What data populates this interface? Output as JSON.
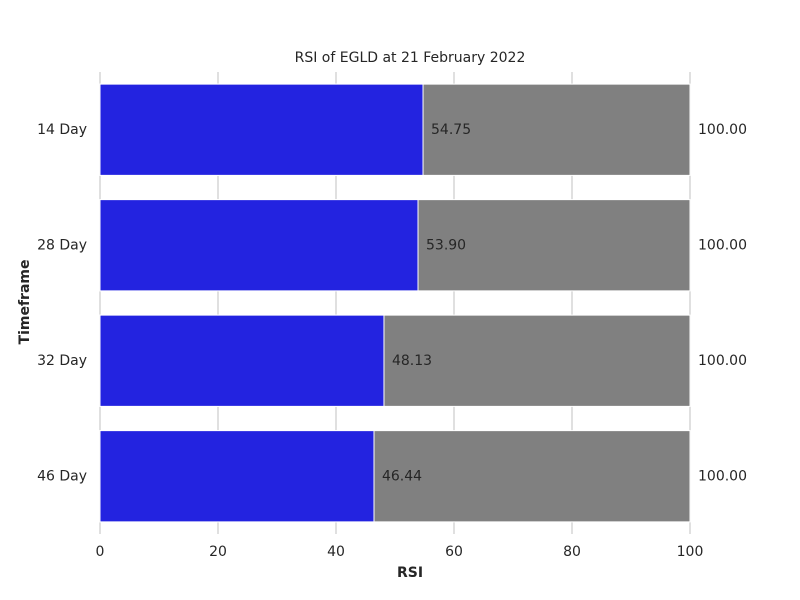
{
  "chart_data": {
    "type": "bar",
    "orientation": "horizontal",
    "title": "RSI of EGLD at 21 February 2022",
    "xlabel": "RSI",
    "ylabel": "Timeframe",
    "categories": [
      "14 Day",
      "28 Day",
      "32 Day",
      "46 Day"
    ],
    "series": [
      {
        "color": "#808080",
        "values": [
          100,
          100,
          100,
          100
        ],
        "value_labels": [
          "100.00",
          "100.00",
          "100.00",
          "100.00"
        ]
      },
      {
        "color": "#2323e0",
        "values": [
          54.75,
          53.9,
          48.13,
          46.44
        ],
        "value_labels": [
          "54.75",
          "53.90",
          "48.13",
          "46.44"
        ]
      }
    ],
    "xlim": [
      0,
      100
    ],
    "xticks": [
      0,
      20,
      40,
      60,
      80,
      100
    ],
    "grid": true
  }
}
